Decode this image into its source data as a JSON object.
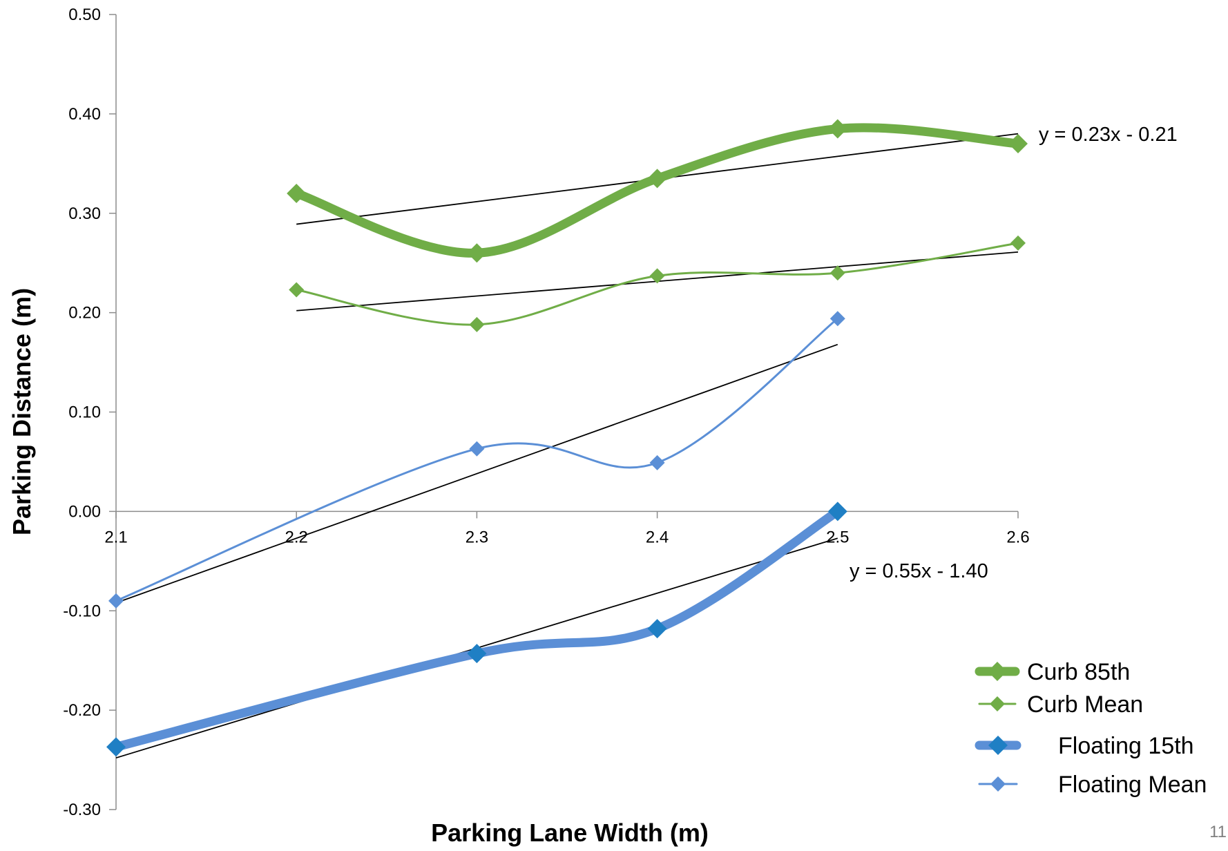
{
  "slide_number": "11",
  "chart_data": {
    "type": "line",
    "title": "",
    "xlabel": "Parking Lane Width (m)",
    "ylabel": "Parking Distance (m)",
    "x_ticks": [
      "2.1",
      "2.2",
      "2.3",
      "2.4",
      "2.5",
      "2.6"
    ],
    "y_ticks": [
      "-0.30",
      "-0.20",
      "-0.10",
      "0.00",
      "0.10",
      "0.20",
      "0.30",
      "0.40",
      "0.50"
    ],
    "xlim": [
      2.1,
      2.6
    ],
    "ylim": [
      -0.3,
      0.5
    ],
    "grid": false,
    "legend_position": "bottom-right",
    "series": [
      {
        "name": "Curb 85th",
        "color": "#70ad47",
        "weight": "thick",
        "marker": "diamond",
        "x": [
          2.2,
          2.3,
          2.4,
          2.5,
          2.6
        ],
        "y": [
          0.32,
          0.26,
          0.335,
          0.385,
          0.37
        ]
      },
      {
        "name": "Curb Mean",
        "color": "#70ad47",
        "weight": "thin",
        "marker": "diamond",
        "x": [
          2.2,
          2.3,
          2.4,
          2.5,
          2.6
        ],
        "y": [
          0.223,
          0.188,
          0.237,
          0.24,
          0.27
        ]
      },
      {
        "name": "Floating 15th",
        "color": "#5b8fd6",
        "marker_color": "#1f7fc4",
        "weight": "thick",
        "marker": "diamond",
        "x": [
          2.1,
          2.3,
          2.4,
          2.5
        ],
        "y": [
          -0.237,
          -0.143,
          -0.118,
          0.0
        ]
      },
      {
        "name": "Floating Mean",
        "color": "#5b8fd6",
        "weight": "thin",
        "marker": "diamond",
        "x": [
          2.1,
          2.3,
          2.4,
          2.5
        ],
        "y": [
          -0.09,
          0.063,
          0.049,
          0.194
        ]
      }
    ],
    "trendlines": [
      {
        "series": "Curb 85th",
        "x": [
          2.2,
          2.6
        ],
        "y": [
          0.289,
          0.38
        ]
      },
      {
        "series": "Curb Mean",
        "x": [
          2.2,
          2.6
        ],
        "y": [
          0.202,
          0.261
        ]
      },
      {
        "series": "Floating Mean",
        "x": [
          2.1,
          2.5
        ],
        "y": [
          -0.092,
          0.168
        ]
      },
      {
        "series": "Floating 15th",
        "x": [
          2.1,
          2.5
        ],
        "y": [
          -0.248,
          -0.027
        ]
      }
    ],
    "annotations": [
      {
        "text": "y = 0.23x - 0.21",
        "near": "Curb 85th trendline end"
      },
      {
        "text": "y = 0.55x - 1.40",
        "near": "Floating 15th trendline end"
      }
    ]
  }
}
